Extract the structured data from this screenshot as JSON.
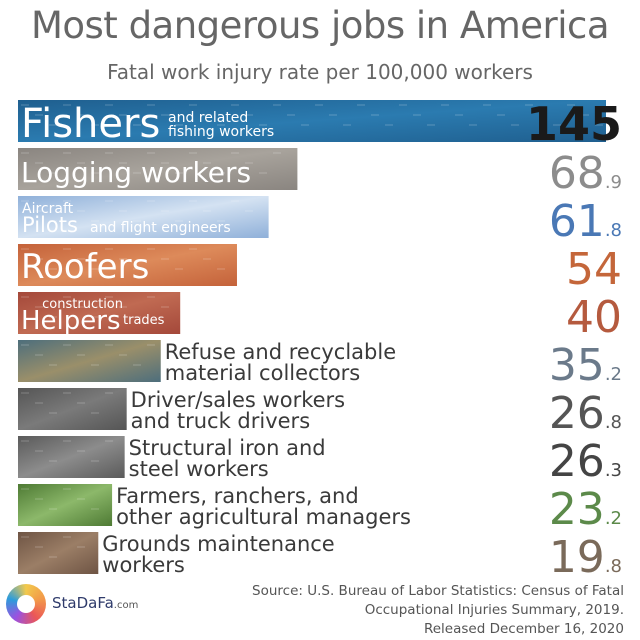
{
  "title": "Most dangerous jobs in America",
  "subtitle": "Fatal work injury rate per 100,000 workers",
  "source": {
    "line1": "Source: U.S. Bureau of Labor Statistics: Census of Fatal",
    "line2": "Occupational  Injuries Summary, 2019.",
    "line3": "Released December 16, 2020"
  },
  "logo": {
    "name": "StaDaFa",
    "suffix": ".com"
  },
  "chart_data": {
    "type": "bar",
    "orientation": "horizontal",
    "title": "Most dangerous jobs in America",
    "subtitle": "Fatal work injury rate per 100,000 workers",
    "categories": [
      "Fishers and related fishing workers",
      "Logging workers",
      "Aircraft Pilots and flight engineers",
      "Roofers",
      "Helpers construction trades",
      "Refuse and recyclable material collectors",
      "Driver/sales workers and truck drivers",
      "Structural iron and steel workers",
      "Farmers, ranchers, and other agricultural managers",
      "Grounds maintenance workers"
    ],
    "values": [
      145,
      68.9,
      61.8,
      54,
      40,
      35.2,
      26.8,
      26.3,
      23.2,
      19.8
    ],
    "bars": [
      {
        "main": "Fishers",
        "sub1": "and related",
        "sub2": "fishing workers",
        "label_pos": "inside",
        "int": "145",
        "dec": "",
        "value_color": "#1a1a1a",
        "fill": "#1f5f8f",
        "fill2": "#2b7bb0"
      },
      {
        "main": "Logging workers",
        "label_pos": "inside",
        "int": "68",
        "dec": ".9",
        "value_color": "#8c8c8c",
        "fill": "#8a8580",
        "fill2": "#a8a39c"
      },
      {
        "pre": "Aircraft",
        "main": "Pilots",
        "sub": "and flight engineers",
        "label_pos": "inside",
        "int": "61",
        "dec": ".8",
        "value_color": "#4a78b5",
        "fill": "#8fb0d9",
        "fill2": "#d4e2f2"
      },
      {
        "main": "Roofers",
        "label_pos": "inside",
        "int": "54",
        "dec": "",
        "value_color": "#c4663a",
        "fill": "#c4623a",
        "fill2": "#dd8a5a"
      },
      {
        "main": "Helpers",
        "sub1": "construction",
        "sub2": "trades",
        "label_pos": "inside",
        "int": "40",
        "dec": "",
        "value_color": "#b55a3e",
        "fill": "#a4483a",
        "fill2": "#c06a52"
      },
      {
        "line1": "Refuse and recyclable",
        "line2": "material collectors",
        "label_pos": "outside",
        "int": "35",
        "dec": ".2",
        "value_color": "#6b7a8a",
        "fill": "#4d6e7c",
        "fill2": "#9a8f6a"
      },
      {
        "line1": "Driver/sales workers",
        "line2": "and truck drivers",
        "label_pos": "outside",
        "int": "26",
        "dec": ".8",
        "value_color": "#555555",
        "fill": "#555555",
        "fill2": "#7a7a7a"
      },
      {
        "line1": "Structural iron and",
        "line2": "steel workers",
        "label_pos": "outside",
        "int": "26",
        "dec": ".3",
        "value_color": "#444444",
        "fill": "#5a5a5a",
        "fill2": "#8c8c8c"
      },
      {
        "line1": "Farmers, ranchers, and",
        "line2": "other agricultural managers",
        "label_pos": "outside",
        "int": "23",
        "dec": ".2",
        "value_color": "#5c8a4a",
        "fill": "#4e7a34",
        "fill2": "#8cb86a"
      },
      {
        "line1": "Grounds maintenance",
        "line2": "workers",
        "label_pos": "outside",
        "int": "19",
        "dec": ".8",
        "value_color": "#7a6a5a",
        "fill": "#6e5444",
        "fill2": "#9b7e66"
      }
    ],
    "xlim": [
      0,
      145
    ],
    "grid": false,
    "legend": "none"
  }
}
